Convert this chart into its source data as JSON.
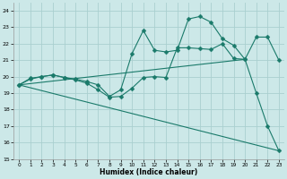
{
  "xlabel": "Humidex (Indice chaleur)",
  "background_color": "#cce8e8",
  "grid_color": "#aacfcf",
  "line_color": "#1a7a6a",
  "xlim": [
    -0.5,
    23.5
  ],
  "ylim": [
    15,
    24.5
  ],
  "yticks": [
    15,
    16,
    17,
    18,
    19,
    20,
    21,
    22,
    23,
    24
  ],
  "xticks": [
    0,
    1,
    2,
    3,
    4,
    5,
    6,
    7,
    8,
    9,
    10,
    11,
    12,
    13,
    14,
    15,
    16,
    17,
    18,
    19,
    20,
    21,
    22,
    23
  ],
  "line1_x": [
    0,
    1,
    2,
    3,
    4,
    5,
    6,
    7,
    8,
    9,
    10,
    11,
    12,
    13,
    14,
    15,
    16,
    17,
    18,
    19,
    20,
    21,
    22,
    23
  ],
  "line1_y": [
    19.5,
    19.9,
    20.0,
    20.1,
    19.95,
    19.8,
    19.6,
    19.2,
    18.75,
    18.8,
    19.3,
    19.95,
    20.0,
    19.95,
    21.75,
    21.75,
    21.7,
    21.65,
    22.0,
    21.1,
    21.05,
    19.0,
    17.0,
    15.5
  ],
  "line2_x": [
    0,
    1,
    2,
    3,
    4,
    5,
    6,
    7,
    8,
    9,
    10,
    11,
    12,
    13,
    14,
    15,
    16,
    17,
    18,
    19,
    20,
    21,
    22,
    23
  ],
  "line2_y": [
    19.5,
    19.85,
    20.0,
    20.1,
    19.95,
    19.85,
    19.7,
    19.5,
    18.8,
    19.2,
    21.4,
    22.8,
    21.6,
    21.5,
    21.6,
    23.5,
    23.65,
    23.3,
    22.3,
    21.9,
    21.05,
    22.4,
    22.4,
    21.0
  ],
  "line3_x": [
    0,
    20
  ],
  "line3_y": [
    19.5,
    21.05
  ],
  "line4_x": [
    0,
    23
  ],
  "line4_y": [
    19.5,
    15.5
  ]
}
